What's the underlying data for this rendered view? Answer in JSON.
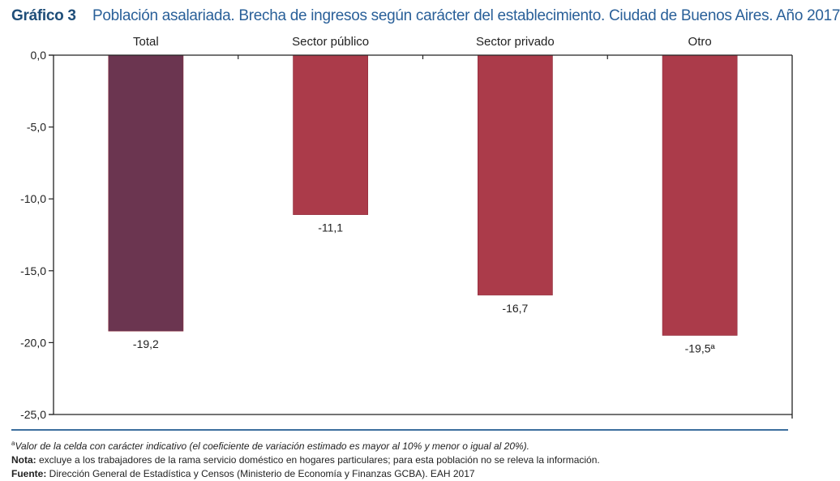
{
  "header": {
    "label": "Gráfico 3",
    "title": "Población asalariada. Brecha de ingresos según carácter del establecimiento. Ciudad de Buenos Aires. Año 2017"
  },
  "chart_data": {
    "type": "bar",
    "title": "Población asalariada. Brecha de ingresos según carácter del establecimiento. Ciudad de Buenos Aires. Año 2017",
    "xlabel": "",
    "ylabel": "",
    "categories": [
      "Total",
      "Sector público",
      "Sector privado",
      "Otro"
    ],
    "values": [
      -19.2,
      -11.1,
      -16.7,
      -19.5
    ],
    "data_labels": [
      "-19,2",
      "-11,1",
      "-16,7",
      "-19,5ª"
    ],
    "colors": [
      "#6b3550",
      "#ab3b4a",
      "#ab3b4a",
      "#ab3b4a"
    ],
    "ylim": [
      -25,
      0
    ],
    "yticks": [
      0,
      -5,
      -10,
      -15,
      -20,
      -25
    ],
    "ytick_labels": [
      "0,0",
      "-5,0",
      "-10,0",
      "-15,0",
      "-20,0",
      "-25,0"
    ],
    "category_axis_position": "top",
    "grid": false,
    "legend": "none"
  },
  "footnotes": {
    "superscript": "a",
    "indicative": "Valor de la celda con carácter indicativo (el coeficiente de variación estimado es mayor al 10% y menor o igual al 20%).",
    "nota_label": "Nota:",
    "nota_text": " excluye a los trabajadores de la rama servicio doméstico en hogares particulares; para esta población no se releva la información.",
    "fuente_label": "Fuente:",
    "fuente_text": " Dirección General de Estadística y Censos (Ministerio de Economía y Finanzas GCBA). EAH 2017"
  }
}
